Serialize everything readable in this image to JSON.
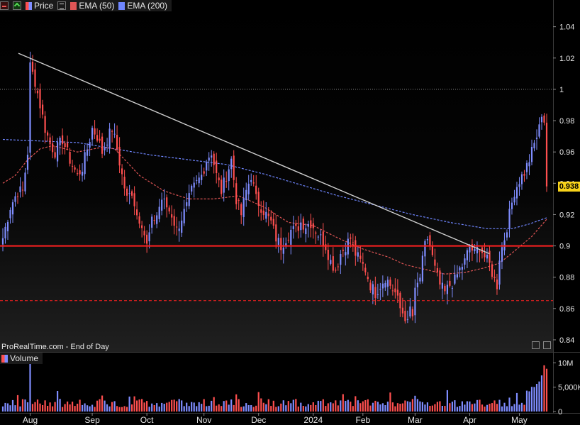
{
  "legend": {
    "price_label": "Price",
    "ema50_label": "EMA (50)",
    "ema200_label": "EMA (200)",
    "ema50_color": "#e05555",
    "ema200_color": "#6f86ff",
    "icons": [
      "close-icon",
      "expand-icon",
      "menu-icon"
    ]
  },
  "credit": "ProRealTime.com - End of Day",
  "volume_label": "Volume",
  "last_price_tag": "0.938",
  "colors": {
    "up": "#7f8dff",
    "down": "#ff4f4f",
    "support": "#ff2020",
    "trendline": "#cfcfcf",
    "price_tag": "#f7d21a"
  },
  "chart_data": [
    {
      "type": "candlestick",
      "name": "price",
      "ylim": [
        0.835,
        1.048
      ],
      "y_ticks": [
        "1.04",
        "1.02",
        "1",
        "0.98",
        "0.96",
        "0.94",
        "0.92",
        "0.9",
        "0.88",
        "0.86",
        "0.84"
      ],
      "y_tick_values": [
        1.04,
        1.02,
        1.0,
        0.98,
        0.96,
        0.94,
        0.92,
        0.9,
        0.88,
        0.86,
        0.84
      ],
      "x_labels": [
        "Aug",
        "Sep",
        "Oct",
        "Nov",
        "Dec",
        "2024",
        "Feb",
        "Mar",
        "Apr",
        "May"
      ],
      "x_label_index": [
        11,
        36,
        58,
        81,
        103,
        125,
        145,
        166,
        188,
        208
      ],
      "close_anchors": [
        [
          0,
          0.905
        ],
        [
          3,
          0.925
        ],
        [
          6,
          0.935
        ],
        [
          8,
          0.935
        ],
        [
          10,
          0.96
        ],
        [
          11,
          1.015
        ],
        [
          13,
          1.005
        ],
        [
          15,
          0.99
        ],
        [
          17,
          0.975
        ],
        [
          19,
          0.965
        ],
        [
          21,
          0.96
        ],
        [
          24,
          0.968
        ],
        [
          27,
          0.955
        ],
        [
          30,
          0.945
        ],
        [
          32,
          0.95
        ],
        [
          34,
          0.962
        ],
        [
          36,
          0.975
        ],
        [
          38,
          0.97
        ],
        [
          40,
          0.96
        ],
        [
          42,
          0.968
        ],
        [
          44,
          0.975
        ],
        [
          46,
          0.962
        ],
        [
          48,
          0.945
        ],
        [
          50,
          0.93
        ],
        [
          52,
          0.935
        ],
        [
          54,
          0.92
        ],
        [
          56,
          0.915
        ],
        [
          58,
          0.9
        ],
        [
          60,
          0.915
        ],
        [
          62,
          0.92
        ],
        [
          64,
          0.93
        ],
        [
          66,
          0.925
        ],
        [
          68,
          0.92
        ],
        [
          70,
          0.91
        ],
        [
          72,
          0.918
        ],
        [
          74,
          0.925
        ],
        [
          76,
          0.935
        ],
        [
          78,
          0.94
        ],
        [
          80,
          0.945
        ],
        [
          82,
          0.955
        ],
        [
          84,
          0.96
        ],
        [
          86,
          0.945
        ],
        [
          88,
          0.935
        ],
        [
          90,
          0.945
        ],
        [
          92,
          0.955
        ],
        [
          94,
          0.93
        ],
        [
          96,
          0.92
        ],
        [
          98,
          0.935
        ],
        [
          100,
          0.945
        ],
        [
          102,
          0.93
        ],
        [
          104,
          0.925
        ],
        [
          106,
          0.92
        ],
        [
          108,
          0.915
        ],
        [
          110,
          0.905
        ],
        [
          112,
          0.9
        ],
        [
          114,
          0.905
        ],
        [
          116,
          0.91
        ],
        [
          118,
          0.91
        ],
        [
          120,
          0.915
        ],
        [
          122,
          0.913
        ],
        [
          124,
          0.915
        ],
        [
          126,
          0.91
        ],
        [
          128,
          0.905
        ],
        [
          130,
          0.9
        ],
        [
          132,
          0.89
        ],
        [
          134,
          0.885
        ],
        [
          136,
          0.895
        ],
        [
          138,
          0.9
        ],
        [
          140,
          0.905
        ],
        [
          142,
          0.895
        ],
        [
          144,
          0.89
        ],
        [
          146,
          0.885
        ],
        [
          148,
          0.875
        ],
        [
          150,
          0.87
        ],
        [
          152,
          0.875
        ],
        [
          154,
          0.88
        ],
        [
          156,
          0.875
        ],
        [
          158,
          0.87
        ],
        [
          160,
          0.86
        ],
        [
          162,
          0.855
        ],
        [
          163,
          0.85
        ],
        [
          164,
          0.86
        ],
        [
          165,
          0.855
        ],
        [
          166,
          0.87
        ],
        [
          168,
          0.88
        ],
        [
          170,
          0.9
        ],
        [
          171,
          0.905
        ],
        [
          172,
          0.9
        ],
        [
          174,
          0.885
        ],
        [
          176,
          0.875
        ],
        [
          178,
          0.87
        ],
        [
          180,
          0.875
        ],
        [
          182,
          0.878
        ],
        [
          184,
          0.885
        ],
        [
          186,
          0.89
        ],
        [
          188,
          0.9
        ],
        [
          190,
          0.895
        ],
        [
          192,
          0.9
        ],
        [
          194,
          0.893
        ],
        [
          196,
          0.888
        ],
        [
          198,
          0.878
        ],
        [
          199,
          0.875
        ],
        [
          200,
          0.893
        ],
        [
          202,
          0.905
        ],
        [
          204,
          0.92
        ],
        [
          206,
          0.935
        ],
        [
          208,
          0.942
        ],
        [
          210,
          0.947
        ],
        [
          212,
          0.955
        ],
        [
          214,
          0.965
        ],
        [
          216,
          0.975
        ],
        [
          217,
          0.985
        ],
        [
          218,
          0.98
        ],
        [
          219,
          0.938
        ]
      ],
      "bars": 220,
      "support_level": 0.9,
      "support_line_2": 0.865,
      "reference_level": 1.0,
      "trendline": {
        "from": [
          0,
          1.023
        ],
        "to": [
          196,
          0.895
        ]
      },
      "ema200_anchors": [
        [
          0,
          0.968
        ],
        [
          15,
          0.967
        ],
        [
          30,
          0.966
        ],
        [
          45,
          0.962
        ],
        [
          60,
          0.958
        ],
        [
          75,
          0.955
        ],
        [
          90,
          0.952
        ],
        [
          105,
          0.946
        ],
        [
          120,
          0.939
        ],
        [
          135,
          0.932
        ],
        [
          150,
          0.926
        ],
        [
          165,
          0.92
        ],
        [
          180,
          0.915
        ],
        [
          195,
          0.911
        ],
        [
          205,
          0.911
        ],
        [
          212,
          0.914
        ],
        [
          219,
          0.918
        ]
      ],
      "ema50_anchors": [
        [
          0,
          0.94
        ],
        [
          5,
          0.945
        ],
        [
          10,
          0.955
        ],
        [
          15,
          0.962
        ],
        [
          20,
          0.964
        ],
        [
          30,
          0.96
        ],
        [
          40,
          0.963
        ],
        [
          45,
          0.962
        ],
        [
          55,
          0.945
        ],
        [
          65,
          0.935
        ],
        [
          75,
          0.93
        ],
        [
          85,
          0.93
        ],
        [
          95,
          0.932
        ],
        [
          105,
          0.925
        ],
        [
          115,
          0.915
        ],
        [
          125,
          0.913
        ],
        [
          135,
          0.905
        ],
        [
          145,
          0.898
        ],
        [
          155,
          0.893
        ],
        [
          162,
          0.888
        ],
        [
          170,
          0.885
        ],
        [
          178,
          0.882
        ],
        [
          186,
          0.883
        ],
        [
          194,
          0.886
        ],
        [
          200,
          0.889
        ],
        [
          207,
          0.898
        ],
        [
          213,
          0.906
        ],
        [
          219,
          0.917
        ]
      ]
    },
    {
      "type": "bar",
      "name": "Volume",
      "y_ticks": [
        "10M",
        "5,000K",
        "0"
      ],
      "y_tick_values": [
        10000000,
        5000000,
        0
      ],
      "ylim": [
        0,
        10500000
      ]
    }
  ]
}
